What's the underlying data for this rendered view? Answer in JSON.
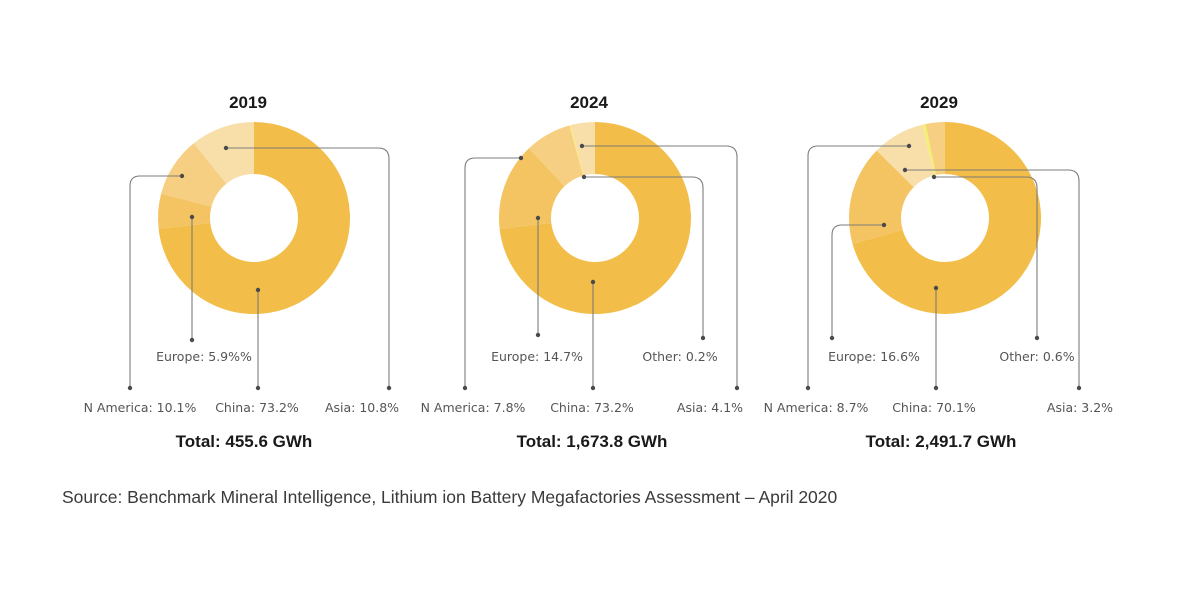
{
  "chart_data": [
    {
      "type": "pie",
      "title": "2019",
      "total": "Total: 455.6 GWh",
      "slices": [
        {
          "name": "China",
          "value": 73.2,
          "label": "China: 73.2%",
          "color": "#f2bd48"
        },
        {
          "name": "Europe",
          "value": 5.9,
          "label": "Europe: 5.9%%",
          "color": "#f4c462"
        },
        {
          "name": "N America",
          "value": 10.1,
          "label": "N America: 10.1%",
          "color": "#f6cf82"
        },
        {
          "name": "Asia",
          "value": 10.8,
          "label": "Asia: 10.8%",
          "color": "#f8dfaa"
        }
      ]
    },
    {
      "type": "pie",
      "title": "2024",
      "total": "Total: 1,673.8 GWh",
      "slices": [
        {
          "name": "China",
          "value": 73.2,
          "label": "China: 73.2%",
          "color": "#f2bd48"
        },
        {
          "name": "Europe",
          "value": 14.7,
          "label": "Europe: 14.7%",
          "color": "#f4c462"
        },
        {
          "name": "N America",
          "value": 7.8,
          "label": "N America: 7.8%",
          "color": "#f6cf82"
        },
        {
          "name": "Other",
          "value": 0.2,
          "label": "Other: 0.2%",
          "color": "#f5ee74"
        },
        {
          "name": "Asia",
          "value": 4.1,
          "label": "Asia: 4.1%",
          "color": "#f8dfaa"
        }
      ]
    },
    {
      "type": "pie",
      "title": "2029",
      "total": "Total: 2,491.7 GWh",
      "slices": [
        {
          "name": "China",
          "value": 70.1,
          "label": "China: 70.1%",
          "color": "#f2bd48"
        },
        {
          "name": "Europe",
          "value": 16.6,
          "label": "Europe: 16.6%",
          "color": "#f4c462"
        },
        {
          "name": "N America",
          "value": 8.7,
          "label": "N America: 8.7%",
          "color": "#f8dfaa"
        },
        {
          "name": "Other",
          "value": 0.6,
          "label": "Other: 0.6%",
          "color": "#f5ee74"
        },
        {
          "name": "Asia",
          "value": 3.2,
          "label": "Asia: 3.2%",
          "color": "#f6cf82"
        }
      ]
    }
  ],
  "source": "Source: Benchmark Mineral Intelligence, Lithium ion Battery Megafactories Assessment – April 2020"
}
